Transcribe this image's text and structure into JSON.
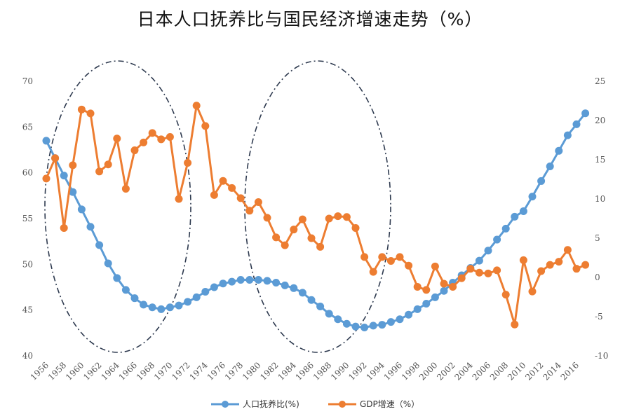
{
  "chart_data": {
    "type": "line",
    "title": "日本人口抚养比与国民经济增速走势（%）",
    "x": [
      1956,
      1957,
      1958,
      1959,
      1960,
      1961,
      1962,
      1963,
      1964,
      1965,
      1966,
      1967,
      1968,
      1969,
      1970,
      1971,
      1972,
      1973,
      1974,
      1975,
      1976,
      1977,
      1978,
      1979,
      1980,
      1981,
      1982,
      1983,
      1984,
      1985,
      1986,
      1987,
      1988,
      1989,
      1990,
      1991,
      1992,
      1993,
      1994,
      1995,
      1996,
      1997,
      1998,
      1999,
      2000,
      2001,
      2002,
      2003,
      2004,
      2005,
      2006,
      2007,
      2008,
      2009,
      2010,
      2011,
      2012,
      2013,
      2014,
      2015,
      2016,
      2017
    ],
    "x_tick_labels": [
      "1956",
      "1958",
      "1960",
      "1962",
      "1964",
      "1966",
      "1968",
      "1970",
      "1972",
      "1974",
      "1976",
      "1978",
      "1980",
      "1982",
      "1984",
      "1986",
      "1988",
      "1990",
      "1992",
      "1994",
      "1996",
      "1998",
      "2000",
      "2002",
      "2004",
      "2006",
      "2008",
      "2010",
      "2012",
      "2014",
      "2016"
    ],
    "y_left": {
      "ylim": [
        40,
        70
      ],
      "ticks": [
        "40",
        "45",
        "50",
        "55",
        "60",
        "65",
        "70"
      ]
    },
    "y_right": {
      "ylim": [
        -10,
        25
      ],
      "ticks": [
        "-10",
        "-5",
        "0",
        "5",
        "10",
        "15",
        "20",
        "25"
      ]
    },
    "grid": false,
    "legend_position": "bottom",
    "series": [
      {
        "name": "人口抚养比(%)",
        "axis": "left",
        "color": "#5b9bd5",
        "values": [
          63.5,
          61.6,
          59.7,
          57.9,
          56.0,
          54.1,
          52.1,
          50.1,
          48.5,
          47.2,
          46.3,
          45.6,
          45.3,
          45.1,
          45.3,
          45.5,
          45.9,
          46.4,
          47.0,
          47.5,
          47.9,
          48.1,
          48.3,
          48.3,
          48.3,
          48.2,
          48.0,
          47.7,
          47.4,
          46.9,
          46.1,
          45.4,
          44.6,
          44.0,
          43.5,
          43.2,
          43.1,
          43.3,
          43.4,
          43.7,
          44.0,
          44.5,
          45.1,
          45.7,
          46.4,
          47.1,
          48.0,
          48.8,
          49.6,
          50.4,
          51.5,
          52.7,
          53.9,
          55.2,
          55.8,
          57.4,
          59.1,
          60.7,
          62.4,
          64.1,
          65.3,
          66.5
        ]
      },
      {
        "name": "GDP增速（%）",
        "axis": "right",
        "color": "#ed7d31",
        "values": [
          12.6,
          15.2,
          6.3,
          14.3,
          21.4,
          20.9,
          13.5,
          14.4,
          17.7,
          11.3,
          16.2,
          17.2,
          18.4,
          17.6,
          17.9,
          10.0,
          14.6,
          21.9,
          19.3,
          10.5,
          12.3,
          11.4,
          10.1,
          8.5,
          9.6,
          7.6,
          5.1,
          4.1,
          6.1,
          7.4,
          5.0,
          3.9,
          7.5,
          7.8,
          7.7,
          6.3,
          2.6,
          0.7,
          2.6,
          2.1,
          2.6,
          1.5,
          -1.2,
          -1.6,
          1.4,
          -0.8,
          -1.2,
          -0.1,
          1.1,
          0.6,
          0.5,
          0.9,
          -2.2,
          -6.0,
          2.2,
          -1.8,
          0.8,
          1.6,
          2.0,
          3.5,
          1.1,
          1.6
        ]
      }
    ]
  }
}
